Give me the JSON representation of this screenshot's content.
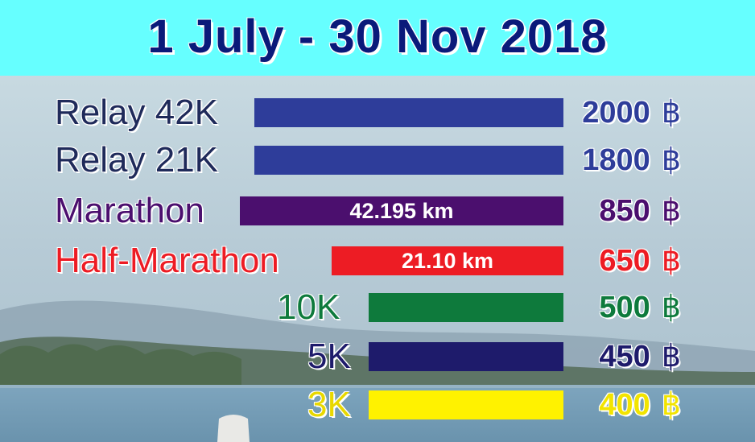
{
  "header": {
    "title": "1 July - 30 Nov 2018",
    "bg_color": "#66FFFF",
    "text_color": "#0a1a7a"
  },
  "currency_symbol": "฿",
  "rows": [
    {
      "label": "Relay 42K",
      "price": "2000",
      "bar_text": "",
      "color": "#2E3D9A",
      "label_color": "#1f2a5a"
    },
    {
      "label": "Relay 21K",
      "price": "1800",
      "bar_text": "",
      "color": "#2E3D9A",
      "label_color": "#1f2a5a"
    },
    {
      "label": "Marathon",
      "price": "850",
      "bar_text": "42.195 km",
      "color": "#4B0F6E",
      "label_color": "#4B0F6E"
    },
    {
      "label": "Half-Marathon",
      "price": "650",
      "bar_text": "21.10 km",
      "color": "#ED1C24",
      "label_color": "#ED1C24"
    },
    {
      "label": "10K",
      "price": "500",
      "bar_text": "",
      "color": "#0E7A3C",
      "label_color": "#0E7A3C"
    },
    {
      "label": "5K",
      "price": "450",
      "bar_text": "",
      "color": "#1E1B6B",
      "label_color": "#1E1B6B"
    },
    {
      "label": "3K",
      "price": "400",
      "bar_text": "",
      "color": "#FFF200",
      "label_color": "#E8D800"
    }
  ]
}
